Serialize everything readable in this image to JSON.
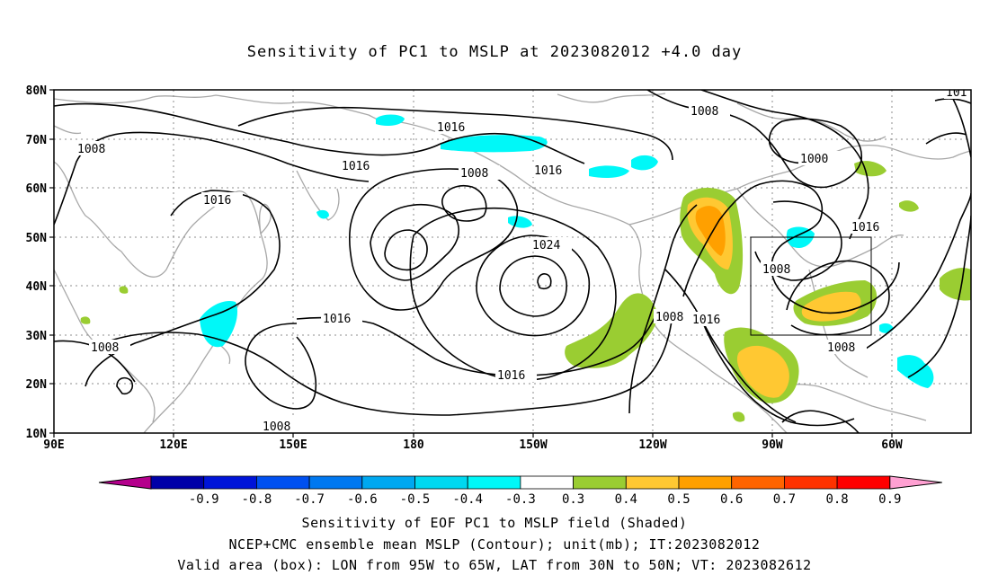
{
  "title": "Sensitivity of PC1 to MSLP at 2023082012 +4.0 day",
  "lat_labels": [
    "80N",
    "70N",
    "60N",
    "50N",
    "40N",
    "30N",
    "20N",
    "10N"
  ],
  "lon_labels": [
    "90E",
    "120E",
    "150E",
    "180",
    "150W",
    "120W",
    "90W",
    "60W"
  ],
  "contour_labels": {
    "c1": "1008",
    "c2": "1016",
    "c3": "1016",
    "c4": "1008",
    "c5": "1016",
    "c6": "1000",
    "c7": "1016",
    "c8": "1024",
    "c9": "1008",
    "c10": "1008",
    "c11": "1016",
    "c12": "1016",
    "c13": "1008",
    "c14": "1008",
    "c15": "1016",
    "c16": "1008",
    "c17": "1016",
    "c18": "101"
  },
  "colorbar": {
    "levels": [
      "-0.9",
      "-0.8",
      "-0.7",
      "-0.6",
      "-0.5",
      "-0.4",
      "-0.3",
      "0.3",
      "0.4",
      "0.5",
      "0.6",
      "0.7",
      "0.8",
      "0.9"
    ],
    "colors": [
      "#0000a8",
      "#0014d8",
      "#0050f0",
      "#0078f0",
      "#00a8f0",
      "#00d8f0",
      "#00f8f8",
      "#ffffff",
      "#9acd32",
      "#ffc832",
      "#ffa000",
      "#ff6400",
      "#ff3200",
      "#ff0000"
    ],
    "low_arrow_color": "#b4008c",
    "high_arrow_color": "#ffa0d2"
  },
  "captions": {
    "line1": "Sensitivity of EOF PC1 to MSLP field (Shaded)",
    "line2": "NCEP+CMC ensemble mean MSLP (Contour); unit(mb); IT:2023082012",
    "line3": "Valid area (box): LON from 95W to 65W, LAT from 30N to 50N; VT: 2023082612"
  }
}
